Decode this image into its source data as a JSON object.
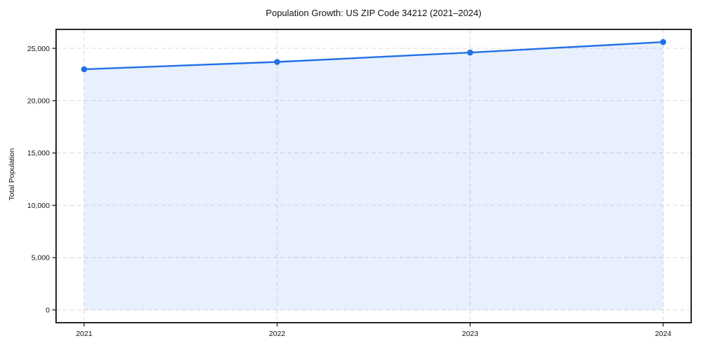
{
  "chart_data": {
    "type": "line",
    "title": "Population Growth: US ZIP Code 34212 (2021–2024)",
    "xlabel": "",
    "ylabel": "Total Population",
    "categories": [
      "2021",
      "2022",
      "2023",
      "2024"
    ],
    "series": [
      {
        "name": "Total Population",
        "values": [
          23000,
          23700,
          24600,
          25600
        ]
      }
    ],
    "area_fill": true,
    "marker": "circle",
    "grid": true,
    "legend": "none",
    "ylim": [
      -1220,
      26810
    ],
    "y_ticks": [
      {
        "value": 0,
        "label": "0"
      },
      {
        "value": 5000,
        "label": "5,000"
      },
      {
        "value": 10000,
        "label": "10,000"
      },
      {
        "value": 15000,
        "label": "15,000"
      },
      {
        "value": 20000,
        "label": "20,000"
      },
      {
        "value": 25000,
        "label": "25,000"
      }
    ],
    "colors": {
      "line": "#2270e8",
      "marker": "#2270e8",
      "fill": "#2270e8",
      "fill_opacity": 0.1,
      "grid": "#d9d9d9",
      "frame": "#111111",
      "text": "#111111"
    }
  }
}
